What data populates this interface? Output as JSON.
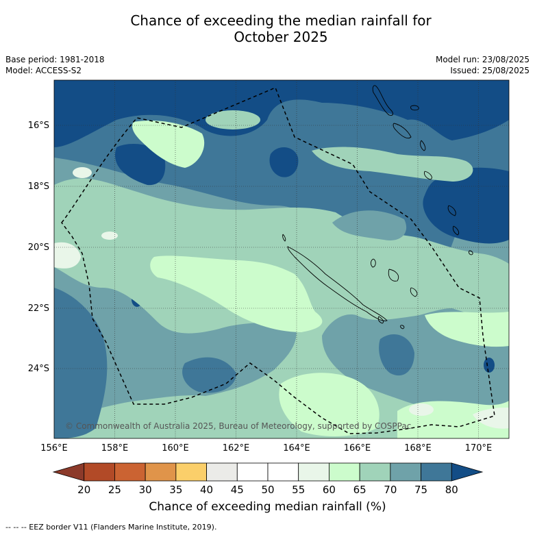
{
  "header": {
    "title_line1": "Chance of exceeding the median rainfall for",
    "title_line2": "October 2025",
    "base_period": "Base period: 1981-2018",
    "model": "Model: ACCESS-S2",
    "model_run": "Model run: 23/08/2025",
    "issued": "Issued: 25/08/2025"
  },
  "map": {
    "lat_labels": [
      "16°S",
      "18°S",
      "20°S",
      "22°S",
      "24°S"
    ],
    "lon_labels": [
      "156°E",
      "158°E",
      "160°E",
      "162°E",
      "164°E",
      "166°E",
      "168°E",
      "170°E"
    ],
    "copyright": "© Commonwealth of Australia 2025, Bureau of Meteorology, supported by COSPPac",
    "features": [
      "New Caledonia",
      "Vanuatu",
      "Loyalty Islands",
      "EEZ border"
    ]
  },
  "colorbar": {
    "title": "Chance of exceeding median rainfall (%)",
    "ticks": [
      "20",
      "25",
      "30",
      "35",
      "40",
      "45",
      "50",
      "55",
      "60",
      "65",
      "70",
      "75",
      "80"
    ],
    "colors": [
      "#8c3a2a",
      "#b24a27",
      "#cb6332",
      "#e0944a",
      "#fbcf6a",
      "#ebebe8",
      "#ffffff",
      "#ffffff",
      "#e9f6e9",
      "#ccfccc",
      "#a0d3b9",
      "#6fa2a9",
      "#3f7798",
      "#134d86"
    ]
  },
  "footer": {
    "legend_note": "-- -- -- EEZ border V11 (Flanders Marine Institute, 2019)."
  }
}
